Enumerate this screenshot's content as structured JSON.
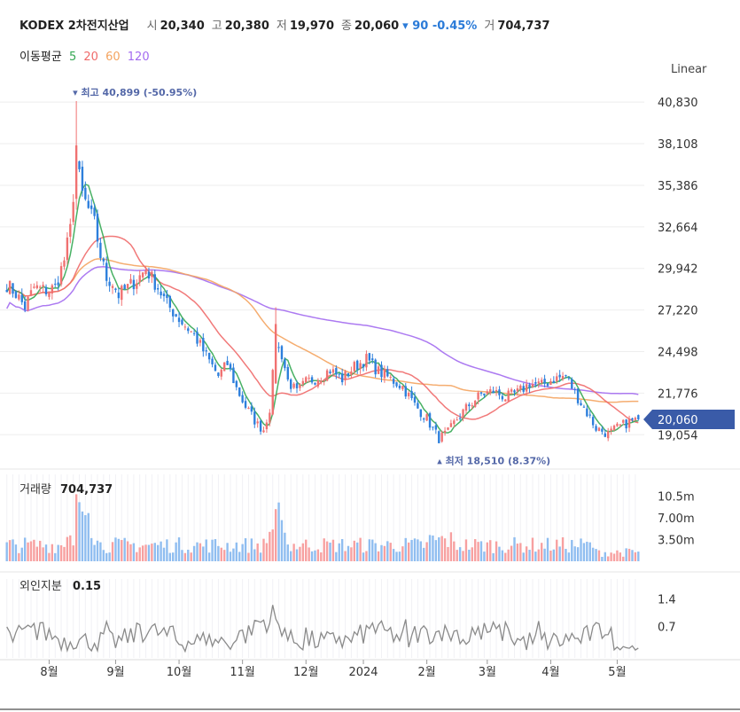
{
  "header": {
    "name": "KODEX 2차전지산업",
    "open_label": "시",
    "open": "20,340",
    "high_label": "고",
    "high": "20,380",
    "low_label": "저",
    "low": "19,970",
    "close_label": "종",
    "close": "20,060",
    "change": "▾ 90 -0.45%",
    "volume_label": "거",
    "volume": "704,737"
  },
  "ma": {
    "label": "이동평균",
    "periods": [
      {
        "text": "5",
        "color": "#34a853"
      },
      {
        "text": "20",
        "color": "#f06a6a"
      },
      {
        "text": "60",
        "color": "#f4a460"
      },
      {
        "text": "120",
        "color": "#a36bf0"
      }
    ]
  },
  "scale_toggle": "Linear",
  "colors": {
    "up": "#f07171",
    "down": "#2d7fdc",
    "ma5": "#34a853",
    "ma20": "#f06a6a",
    "ma60": "#f4a460",
    "ma120": "#a36bf0",
    "last_tag": "#3a5ba8",
    "annotation": "#5468a8"
  },
  "chart_data": {
    "type": "candlestick",
    "price_axis_ticks": [
      "40,830",
      "38,108",
      "35,386",
      "32,664",
      "29,942",
      "27,220",
      "24,498",
      "21,776",
      "19,054"
    ],
    "price_axis_values": [
      40830,
      38108,
      35386,
      32664,
      29942,
      27220,
      24498,
      21776,
      19054
    ],
    "price_range": [
      18200,
      42000
    ],
    "last_price": 20060,
    "last_price_label": "20,060",
    "high_annotation": {
      "text": "▾ 최고 40,899 (-50.95%)",
      "value": 40899
    },
    "low_annotation": {
      "text": "▴ 최저 18,510 (8.37%)",
      "value": 18510
    },
    "x_ticks": [
      "8월",
      "9월",
      "10월",
      "11월",
      "12월",
      "2024",
      "2월",
      "3월",
      "4월",
      "5월"
    ],
    "x_tick_index": [
      14,
      36,
      57,
      78,
      99,
      118,
      139,
      159,
      180,
      202
    ],
    "n_days": 210,
    "candles": [],
    "ma5": [],
    "ma20": [],
    "ma60": [],
    "ma120": [],
    "anchors": [
      {
        "i": 0,
        "v": 28900
      },
      {
        "i": 3,
        "v": 28300
      },
      {
        "i": 6,
        "v": 27400
      },
      {
        "i": 9,
        "v": 28700
      },
      {
        "i": 13,
        "v": 28500
      },
      {
        "i": 16,
        "v": 28700
      },
      {
        "i": 19,
        "v": 30500
      },
      {
        "i": 21,
        "v": 32500
      },
      {
        "i": 23,
        "v": 37000
      },
      {
        "i": 25,
        "v": 34800
      },
      {
        "i": 27,
        "v": 33800
      },
      {
        "i": 29,
        "v": 32900
      },
      {
        "i": 31,
        "v": 30800
      },
      {
        "i": 33,
        "v": 29300
      },
      {
        "i": 35,
        "v": 29000
      },
      {
        "i": 37,
        "v": 28200
      },
      {
        "i": 40,
        "v": 28700
      },
      {
        "i": 43,
        "v": 29200
      },
      {
        "i": 46,
        "v": 29900
      },
      {
        "i": 50,
        "v": 28700
      },
      {
        "i": 53,
        "v": 27600
      },
      {
        "i": 58,
        "v": 26400
      },
      {
        "i": 62,
        "v": 25600
      },
      {
        "i": 66,
        "v": 24200
      },
      {
        "i": 70,
        "v": 22900
      },
      {
        "i": 73,
        "v": 23700
      },
      {
        "i": 76,
        "v": 22100
      },
      {
        "i": 79,
        "v": 20900
      },
      {
        "i": 83,
        "v": 19700
      },
      {
        "i": 85,
        "v": 19400
      },
      {
        "i": 87,
        "v": 20800
      },
      {
        "i": 89,
        "v": 25000
      },
      {
        "i": 91,
        "v": 24300
      },
      {
        "i": 93,
        "v": 22600
      },
      {
        "i": 96,
        "v": 21800
      },
      {
        "i": 99,
        "v": 22500
      },
      {
        "i": 103,
        "v": 22800
      },
      {
        "i": 107,
        "v": 23300
      },
      {
        "i": 111,
        "v": 22700
      },
      {
        "i": 115,
        "v": 23500
      },
      {
        "i": 119,
        "v": 24000
      },
      {
        "i": 123,
        "v": 23200
      },
      {
        "i": 127,
        "v": 22700
      },
      {
        "i": 131,
        "v": 22200
      },
      {
        "i": 135,
        "v": 21000
      },
      {
        "i": 139,
        "v": 20100
      },
      {
        "i": 143,
        "v": 18800
      },
      {
        "i": 146,
        "v": 19200
      },
      {
        "i": 149,
        "v": 20100
      },
      {
        "i": 153,
        "v": 21000
      },
      {
        "i": 157,
        "v": 21700
      },
      {
        "i": 161,
        "v": 21900
      },
      {
        "i": 165,
        "v": 21500
      },
      {
        "i": 169,
        "v": 21800
      },
      {
        "i": 173,
        "v": 22400
      },
      {
        "i": 177,
        "v": 22300
      },
      {
        "i": 181,
        "v": 22700
      },
      {
        "i": 185,
        "v": 22900
      },
      {
        "i": 188,
        "v": 21800
      },
      {
        "i": 191,
        "v": 20800
      },
      {
        "i": 195,
        "v": 19500
      },
      {
        "i": 199,
        "v": 19100
      },
      {
        "i": 202,
        "v": 19500
      },
      {
        "i": 206,
        "v": 19900
      },
      {
        "i": 209,
        "v": 20060
      }
    ],
    "volume_panel": {
      "label": "거래량",
      "value": "704,737",
      "ticks": [
        "10.5m",
        "7.00m",
        "3.50m"
      ],
      "tick_values": [
        10500000,
        7000000,
        3500000
      ],
      "range": [
        0,
        14000000
      ]
    },
    "foreign_panel": {
      "label": "외인지분",
      "value": "0.15",
      "ticks": [
        "1.4",
        "0.7"
      ],
      "tick_values": [
        1.4,
        0.7
      ],
      "range": [
        -0.1,
        1.9
      ]
    }
  }
}
